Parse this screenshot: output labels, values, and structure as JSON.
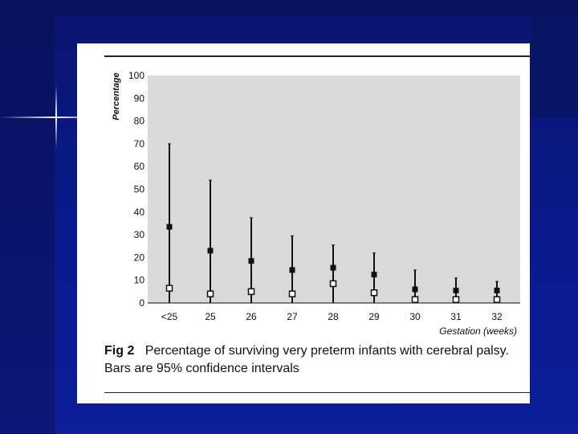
{
  "figure": {
    "label": "Fig 2",
    "caption": "Percentage of surviving very preterm infants with cerebral palsy. Bars are 95% confidence intervals"
  },
  "chart_data": {
    "type": "scatter",
    "categories": [
      "<25",
      "25",
      "26",
      "27",
      "28",
      "29",
      "30",
      "31",
      "32"
    ],
    "ylabel": "Percentage",
    "xlabel": "Gestation (weeks)",
    "ylim": [
      0,
      100
    ],
    "yticks": [
      0,
      10,
      20,
      30,
      40,
      50,
      60,
      70,
      80,
      90,
      100
    ],
    "grid": false,
    "series": [
      {
        "marker": "filled-square",
        "values": [
          33.5,
          23,
          18.5,
          14.5,
          15.5,
          12.5,
          6,
          5.5,
          5.5
        ],
        "ci_upper": [
          70,
          54,
          37.5,
          29.5,
          25.5,
          22,
          14.5,
          11,
          9.5
        ]
      },
      {
        "marker": "open-square",
        "values": [
          6.5,
          4,
          5,
          4,
          8.5,
          4.5,
          1.5,
          1.5,
          1.5
        ]
      }
    ]
  }
}
